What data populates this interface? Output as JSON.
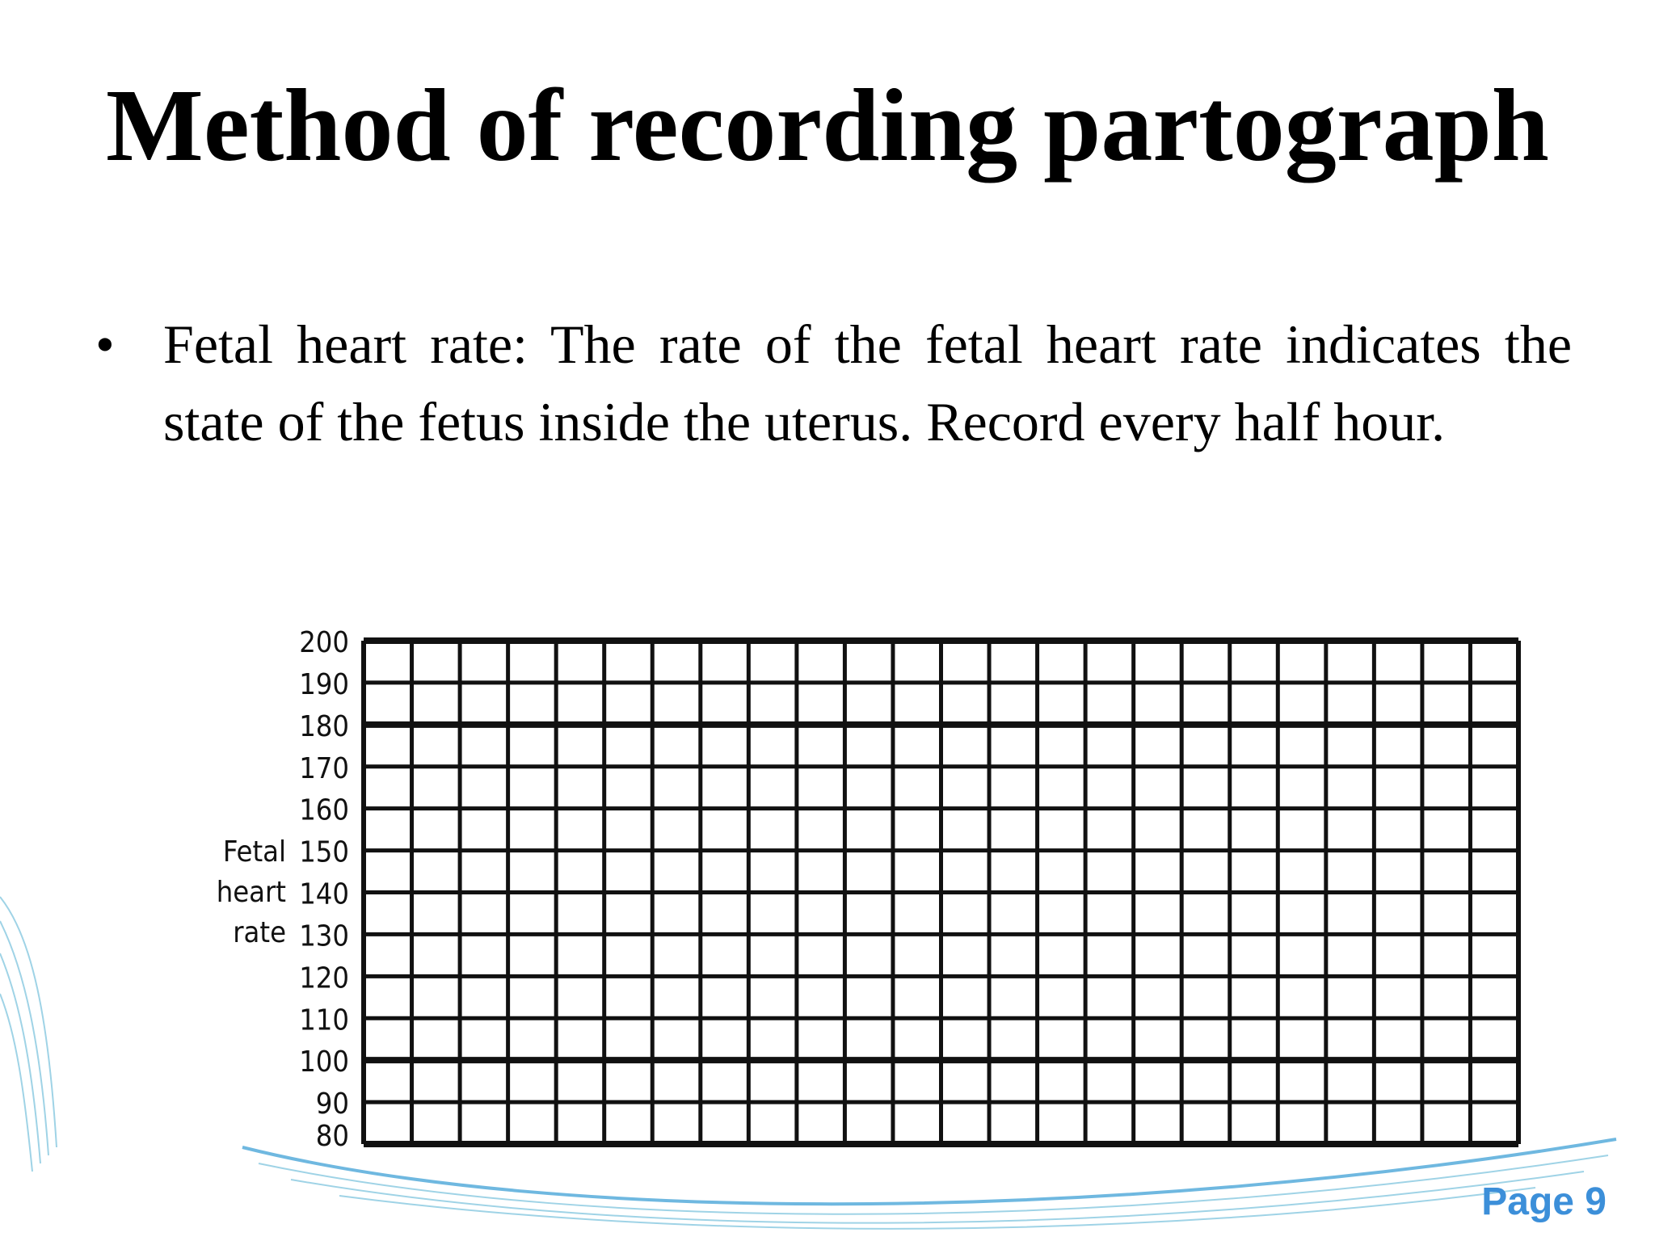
{
  "header": {
    "title": "Method of recording partograph"
  },
  "bullet": "Fetal heart rate: The rate of the fetal heart rate indicates the state of the fetus inside the uterus. Record every half hour.",
  "partograph": {
    "axis_label": [
      "Fetal",
      "heart",
      "rate"
    ],
    "yticks": [
      200,
      190,
      180,
      170,
      160,
      150,
      140,
      130,
      120,
      110,
      100,
      90,
      80
    ]
  },
  "footer": {
    "page": "Page 9"
  }
}
